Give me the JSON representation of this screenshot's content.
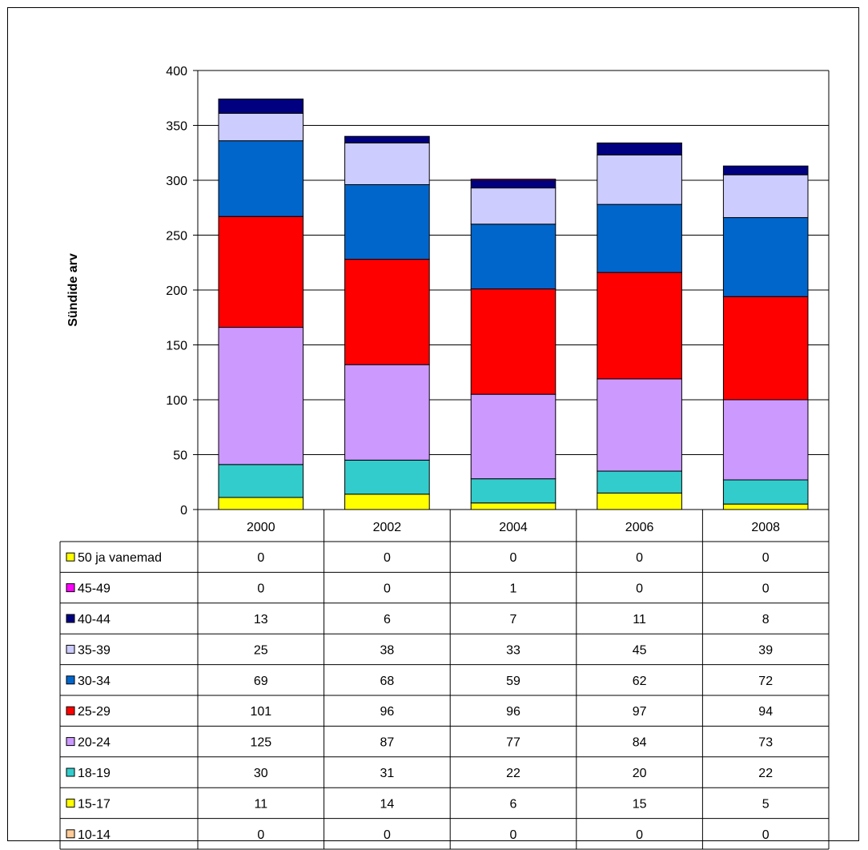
{
  "chart_data": {
    "type": "bar",
    "stacked": true,
    "title": "",
    "xlabel": "",
    "ylabel": "Sündide arv",
    "ylim": [
      0,
      400
    ],
    "yticks": [
      0,
      50,
      100,
      150,
      200,
      250,
      300,
      350,
      400
    ],
    "grid": true,
    "legend_placement": "data-table-left",
    "categories": [
      "2000",
      "2002",
      "2004",
      "2006",
      "2008"
    ],
    "series": [
      {
        "name": "10-14",
        "color": "#FFCC99",
        "values": [
          0,
          0,
          0,
          0,
          0
        ]
      },
      {
        "name": "15-17",
        "color": "#FFFF00",
        "values": [
          11,
          14,
          6,
          15,
          5
        ]
      },
      {
        "name": "18-19",
        "color": "#33CCCC",
        "values": [
          30,
          31,
          22,
          20,
          22
        ]
      },
      {
        "name": "20-24",
        "color": "#CC99FF",
        "values": [
          125,
          87,
          77,
          84,
          73
        ]
      },
      {
        "name": "25-29",
        "color": "#FF0000",
        "values": [
          101,
          96,
          96,
          97,
          94
        ]
      },
      {
        "name": "30-34",
        "color": "#0066CC",
        "values": [
          69,
          68,
          59,
          62,
          72
        ]
      },
      {
        "name": "35-39",
        "color": "#CCCCFF",
        "values": [
          25,
          38,
          33,
          45,
          39
        ]
      },
      {
        "name": "40-44",
        "color": "#000080",
        "values": [
          13,
          6,
          7,
          11,
          8
        ]
      },
      {
        "name": "45-49",
        "color": "#FF00FF",
        "values": [
          0,
          0,
          1,
          0,
          0
        ]
      },
      {
        "name": "50 ja vanemad",
        "color": "#FFFF00",
        "values": [
          0,
          0,
          0,
          0,
          0
        ]
      }
    ]
  }
}
